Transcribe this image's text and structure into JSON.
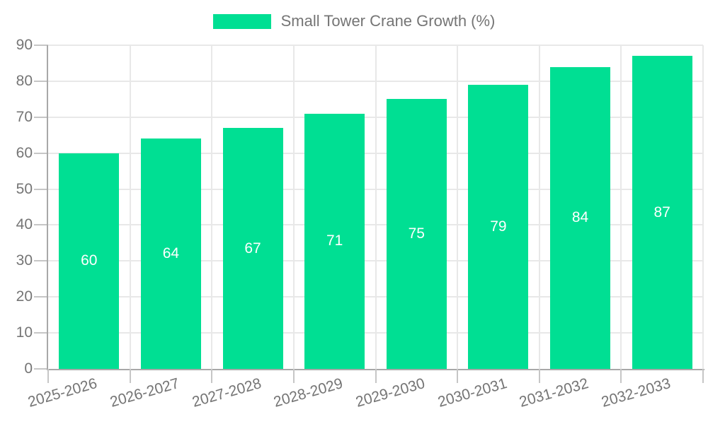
{
  "legend": {
    "position": "top",
    "label": "Small Tower Crane Growth (%)"
  },
  "chart_data": {
    "type": "bar",
    "title": "Small Tower Crane Growth (%)",
    "categories": [
      "2025-2026",
      "2026-2027",
      "2027-2028",
      "2028-2029",
      "2029-2030",
      "2030-2031",
      "2031-2032",
      "2032-2033"
    ],
    "series": [
      {
        "name": "Small Tower Crane Growth (%)",
        "color": "#00DF93",
        "values": [
          60,
          64,
          67,
          71,
          75,
          79,
          84,
          87
        ]
      }
    ],
    "value_labels": {
      "show": true,
      "position": "center",
      "color": "#FFFFFF"
    },
    "xlabel": "",
    "ylabel": "",
    "ylim": [
      0,
      90
    ],
    "ytick_step": 10,
    "yticks": [
      0,
      10,
      20,
      30,
      40,
      50,
      60,
      70,
      80,
      90
    ],
    "grid": true,
    "x_label_rotation_deg": -16,
    "colors": {
      "axis_label": "#757575",
      "axis_line": "#A8A8A8",
      "gridline": "#E8E8E8",
      "tick": "#C6C6C6",
      "background": "#FFFFFF"
    }
  }
}
